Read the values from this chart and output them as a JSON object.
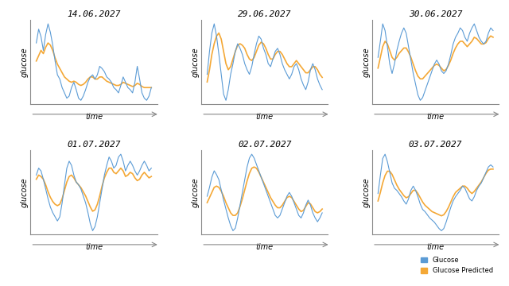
{
  "titles": [
    "14.06.2027",
    "29.06.2027",
    "30.06.2027",
    "01.07.2027",
    "02.07.2027",
    "03.07.2027"
  ],
  "underline_titles": [
    true,
    true,
    true,
    true,
    false,
    true
  ],
  "ylabel": "glucose",
  "xlabel": "time",
  "blue_color": "#5B9BD5",
  "orange_color": "#F4A836",
  "legend_labels": [
    "Glucose",
    "Glucose Predicted"
  ],
  "bg_color": "#FFFFFF",
  "title_fontsize": 8,
  "label_fontsize": 7,
  "subplot_rows": 2,
  "subplot_cols": 3,
  "series": [
    {
      "blue": [
        0.72,
        0.85,
        0.78,
        0.65,
        0.8,
        0.9,
        0.82,
        0.7,
        0.55,
        0.42,
        0.38,
        0.3,
        0.25,
        0.2,
        0.22,
        0.3,
        0.35,
        0.28,
        0.2,
        0.18,
        0.22,
        0.28,
        0.35,
        0.4,
        0.42,
        0.38,
        0.42,
        0.5,
        0.48,
        0.45,
        0.4,
        0.38,
        0.35,
        0.3,
        0.28,
        0.25,
        0.32,
        0.4,
        0.35,
        0.3,
        0.28,
        0.25,
        0.35,
        0.5,
        0.38,
        0.25,
        0.2,
        0.18,
        0.22,
        0.3
      ],
      "orange": [
        0.55,
        0.6,
        0.65,
        0.62,
        0.68,
        0.72,
        0.7,
        0.65,
        0.58,
        0.52,
        0.48,
        0.44,
        0.4,
        0.38,
        0.36,
        0.35,
        0.36,
        0.35,
        0.33,
        0.32,
        0.33,
        0.35,
        0.38,
        0.4,
        0.4,
        0.38,
        0.38,
        0.4,
        0.4,
        0.38,
        0.36,
        0.35,
        0.34,
        0.33,
        0.32,
        0.32,
        0.33,
        0.35,
        0.34,
        0.33,
        0.32,
        0.31,
        0.32,
        0.34,
        0.33,
        0.31,
        0.3,
        0.3,
        0.3,
        0.3
      ]
    },
    {
      "blue": [
        0.55,
        0.7,
        0.82,
        0.88,
        0.8,
        0.68,
        0.55,
        0.42,
        0.38,
        0.45,
        0.55,
        0.62,
        0.7,
        0.75,
        0.72,
        0.68,
        0.62,
        0.58,
        0.55,
        0.6,
        0.68,
        0.75,
        0.8,
        0.78,
        0.72,
        0.68,
        0.62,
        0.6,
        0.65,
        0.7,
        0.72,
        0.68,
        0.62,
        0.58,
        0.55,
        0.52,
        0.55,
        0.6,
        0.62,
        0.58,
        0.52,
        0.48,
        0.45,
        0.5,
        0.58,
        0.62,
        0.58,
        0.52,
        0.48,
        0.45
      ],
      "orange": [
        0.5,
        0.58,
        0.68,
        0.75,
        0.8,
        0.82,
        0.78,
        0.7,
        0.62,
        0.58,
        0.6,
        0.65,
        0.7,
        0.74,
        0.75,
        0.74,
        0.72,
        0.68,
        0.65,
        0.64,
        0.66,
        0.7,
        0.74,
        0.76,
        0.75,
        0.72,
        0.68,
        0.65,
        0.65,
        0.68,
        0.7,
        0.7,
        0.68,
        0.65,
        0.62,
        0.6,
        0.6,
        0.62,
        0.64,
        0.62,
        0.6,
        0.58,
        0.56,
        0.56,
        0.58,
        0.6,
        0.6,
        0.58,
        0.55,
        0.53
      ]
    },
    {
      "blue": [
        0.6,
        0.72,
        0.85,
        0.8,
        0.68,
        0.55,
        0.48,
        0.55,
        0.65,
        0.72,
        0.78,
        0.82,
        0.78,
        0.68,
        0.58,
        0.48,
        0.4,
        0.32,
        0.28,
        0.3,
        0.35,
        0.4,
        0.45,
        0.5,
        0.55,
        0.58,
        0.55,
        0.5,
        0.48,
        0.5,
        0.55,
        0.62,
        0.7,
        0.75,
        0.78,
        0.82,
        0.8,
        0.75,
        0.72,
        0.78,
        0.82,
        0.85,
        0.8,
        0.75,
        0.72,
        0.7,
        0.72,
        0.78,
        0.82,
        0.8
      ],
      "orange": [
        0.52,
        0.6,
        0.68,
        0.72,
        0.7,
        0.65,
        0.6,
        0.58,
        0.6,
        0.63,
        0.65,
        0.67,
        0.67,
        0.64,
        0.6,
        0.55,
        0.5,
        0.46,
        0.44,
        0.44,
        0.46,
        0.48,
        0.5,
        0.52,
        0.54,
        0.55,
        0.54,
        0.52,
        0.5,
        0.51,
        0.54,
        0.58,
        0.63,
        0.67,
        0.7,
        0.72,
        0.72,
        0.7,
        0.68,
        0.7,
        0.72,
        0.75,
        0.74,
        0.72,
        0.7,
        0.7,
        0.71,
        0.74,
        0.76,
        0.75
      ]
    },
    {
      "blue": [
        0.65,
        0.7,
        0.68,
        0.62,
        0.55,
        0.48,
        0.42,
        0.38,
        0.35,
        0.32,
        0.35,
        0.45,
        0.58,
        0.7,
        0.75,
        0.72,
        0.65,
        0.6,
        0.58,
        0.55,
        0.5,
        0.45,
        0.38,
        0.3,
        0.25,
        0.28,
        0.35,
        0.45,
        0.55,
        0.65,
        0.72,
        0.78,
        0.75,
        0.7,
        0.72,
        0.78,
        0.8,
        0.75,
        0.68,
        0.72,
        0.75,
        0.72,
        0.68,
        0.65,
        0.68,
        0.72,
        0.75,
        0.72,
        0.68,
        0.7
      ],
      "orange": [
        0.62,
        0.65,
        0.64,
        0.62,
        0.58,
        0.53,
        0.49,
        0.46,
        0.44,
        0.43,
        0.44,
        0.48,
        0.54,
        0.6,
        0.64,
        0.65,
        0.63,
        0.6,
        0.58,
        0.56,
        0.53,
        0.5,
        0.46,
        0.42,
        0.39,
        0.4,
        0.44,
        0.5,
        0.57,
        0.63,
        0.67,
        0.7,
        0.7,
        0.67,
        0.66,
        0.68,
        0.7,
        0.68,
        0.64,
        0.65,
        0.67,
        0.66,
        0.63,
        0.61,
        0.62,
        0.65,
        0.67,
        0.65,
        0.63,
        0.64
      ]
    },
    {
      "blue": [
        0.55,
        0.62,
        0.7,
        0.75,
        0.72,
        0.68,
        0.6,
        0.52,
        0.45,
        0.38,
        0.32,
        0.28,
        0.3,
        0.38,
        0.48,
        0.58,
        0.68,
        0.78,
        0.85,
        0.88,
        0.85,
        0.8,
        0.75,
        0.7,
        0.65,
        0.6,
        0.55,
        0.5,
        0.45,
        0.4,
        0.38,
        0.4,
        0.45,
        0.5,
        0.55,
        0.58,
        0.55,
        0.5,
        0.45,
        0.4,
        0.38,
        0.42,
        0.48,
        0.52,
        0.48,
        0.42,
        0.38,
        0.35,
        0.38,
        0.42
      ],
      "orange": [
        0.5,
        0.54,
        0.58,
        0.62,
        0.63,
        0.62,
        0.59,
        0.55,
        0.5,
        0.46,
        0.42,
        0.4,
        0.4,
        0.42,
        0.47,
        0.53,
        0.6,
        0.67,
        0.73,
        0.77,
        0.78,
        0.77,
        0.74,
        0.7,
        0.66,
        0.62,
        0.58,
        0.54,
        0.51,
        0.48,
        0.46,
        0.46,
        0.48,
        0.51,
        0.54,
        0.55,
        0.54,
        0.51,
        0.48,
        0.45,
        0.43,
        0.44,
        0.47,
        0.5,
        0.49,
        0.46,
        0.43,
        0.42,
        0.43,
        0.45
      ]
    },
    {
      "blue": [
        0.55,
        0.72,
        0.88,
        0.92,
        0.85,
        0.75,
        0.65,
        0.6,
        0.58,
        0.55,
        0.52,
        0.48,
        0.45,
        0.5,
        0.58,
        0.62,
        0.58,
        0.52,
        0.45,
        0.4,
        0.38,
        0.35,
        0.32,
        0.3,
        0.28,
        0.25,
        0.22,
        0.2,
        0.22,
        0.28,
        0.35,
        0.42,
        0.48,
        0.52,
        0.55,
        0.58,
        0.62,
        0.6,
        0.55,
        0.5,
        0.48,
        0.52,
        0.58,
        0.62,
        0.65,
        0.7,
        0.75,
        0.8,
        0.82,
        0.8
      ],
      "orange": [
        0.48,
        0.56,
        0.65,
        0.72,
        0.76,
        0.76,
        0.73,
        0.68,
        0.63,
        0.59,
        0.56,
        0.53,
        0.51,
        0.52,
        0.55,
        0.58,
        0.58,
        0.55,
        0.51,
        0.47,
        0.44,
        0.42,
        0.4,
        0.38,
        0.37,
        0.36,
        0.35,
        0.34,
        0.35,
        0.38,
        0.42,
        0.47,
        0.52,
        0.56,
        0.58,
        0.6,
        0.62,
        0.62,
        0.6,
        0.57,
        0.55,
        0.57,
        0.6,
        0.63,
        0.66,
        0.7,
        0.74,
        0.77,
        0.78,
        0.78
      ]
    }
  ]
}
